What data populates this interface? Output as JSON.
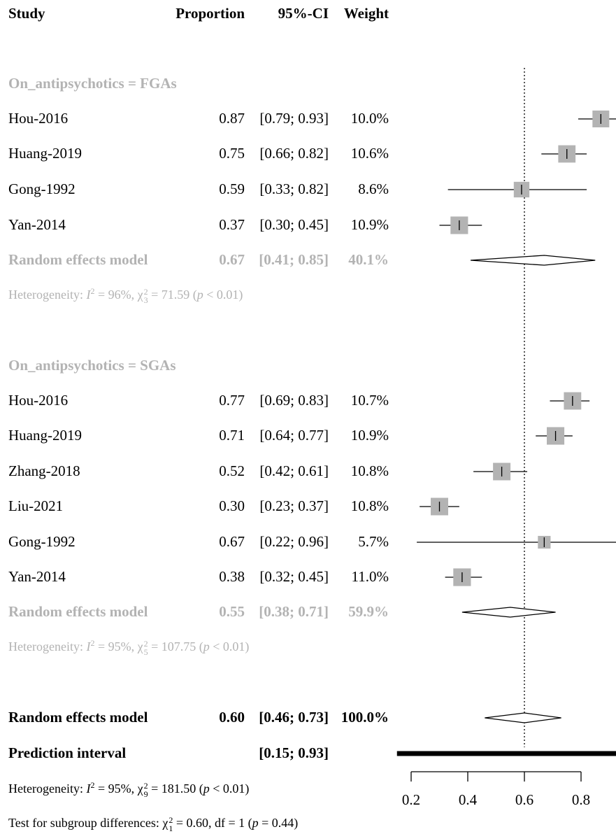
{
  "headers": {
    "study": "Study",
    "proportion": "Proportion",
    "ci": "95%-CI",
    "weight": "Weight"
  },
  "groups": [
    {
      "title": "On_antipsychotics = FGAs",
      "studies": [
        {
          "study": "Hou-2016",
          "est": "0.87",
          "ci": "[0.79; 0.93]",
          "weight": "10.0%",
          "x": 0.87,
          "lo": 0.79,
          "hi": 0.93,
          "w": 10.0
        },
        {
          "study": "Huang-2019",
          "est": "0.75",
          "ci": "[0.66; 0.82]",
          "weight": "10.6%",
          "x": 0.75,
          "lo": 0.66,
          "hi": 0.82,
          "w": 10.6
        },
        {
          "study": "Gong-1992",
          "est": "0.59",
          "ci": "[0.33; 0.82]",
          "weight": "8.6%",
          "x": 0.59,
          "lo": 0.33,
          "hi": 0.82,
          "w": 8.6
        },
        {
          "study": "Yan-2014",
          "est": "0.37",
          "ci": "[0.30; 0.45]",
          "weight": "10.9%",
          "x": 0.37,
          "lo": 0.3,
          "hi": 0.45,
          "w": 10.9
        }
      ],
      "model": {
        "label": "Random effects model",
        "est": "0.67",
        "ci": "[0.41; 0.85]",
        "weight": "40.1%",
        "x": 0.67,
        "lo": 0.41,
        "hi": 0.85
      },
      "het": {
        "prefix": "Heterogeneity: ",
        "I": "I",
        "sup1": "2",
        "eq1": " = 96%, ",
        "chi": "χ",
        "sub": "3",
        "sup2": "2",
        "eq2": " = 71.59 (",
        "p": "p",
        "tail": " < 0.01)"
      }
    },
    {
      "title": "On_antipsychotics = SGAs",
      "studies": [
        {
          "study": "Hou-2016",
          "est": "0.77",
          "ci": "[0.69; 0.83]",
          "weight": "10.7%",
          "x": 0.77,
          "lo": 0.69,
          "hi": 0.83,
          "w": 10.7
        },
        {
          "study": "Huang-2019",
          "est": "0.71",
          "ci": "[0.64; 0.77]",
          "weight": "10.9%",
          "x": 0.71,
          "lo": 0.64,
          "hi": 0.77,
          "w": 10.9
        },
        {
          "study": "Zhang-2018",
          "est": "0.52",
          "ci": "[0.42; 0.61]",
          "weight": "10.8%",
          "x": 0.52,
          "lo": 0.42,
          "hi": 0.61,
          "w": 10.8
        },
        {
          "study": "Liu-2021",
          "est": "0.30",
          "ci": "[0.23; 0.37]",
          "weight": "10.8%",
          "x": 0.3,
          "lo": 0.23,
          "hi": 0.37,
          "w": 10.8
        },
        {
          "study": "Gong-1992",
          "est": "0.67",
          "ci": "[0.22; 0.96]",
          "weight": "5.7%",
          "x": 0.67,
          "lo": 0.22,
          "hi": 0.96,
          "w": 5.7
        },
        {
          "study": "Yan-2014",
          "est": "0.38",
          "ci": "[0.32; 0.45]",
          "weight": "11.0%",
          "x": 0.38,
          "lo": 0.32,
          "hi": 0.45,
          "w": 11.0
        }
      ],
      "model": {
        "label": "Random effects model",
        "est": "0.55",
        "ci": "[0.38; 0.71]",
        "weight": "59.9%",
        "x": 0.55,
        "lo": 0.38,
        "hi": 0.71
      },
      "het": {
        "prefix": "Heterogeneity: ",
        "I": "I",
        "sup1": "2",
        "eq1": " = 95%, ",
        "chi": "χ",
        "sub": "5",
        "sup2": "2",
        "eq2": " = 107.75 (",
        "p": "p",
        "tail": " < 0.01)"
      }
    }
  ],
  "overall": {
    "model": {
      "label": "Random effects model",
      "est": "0.60",
      "ci": "[0.46; 0.73]",
      "weight": "100.0%",
      "x": 0.6,
      "lo": 0.46,
      "hi": 0.73
    },
    "prediction": {
      "label": "Prediction interval",
      "ci": "[0.15; 0.93]",
      "lo": 0.15,
      "hi": 0.93
    },
    "het": {
      "prefix": "Heterogeneity: ",
      "I": "I",
      "sup1": "2",
      "eq1": " = 95%, ",
      "chi": "χ",
      "sub": "9",
      "sup2": "2",
      "eq2": " = 181.50 (",
      "p": "p",
      "tail": " < 0.01)"
    },
    "subgroup": {
      "prefix": "Test for subgroup differences: ",
      "chi": "χ",
      "sub": "1",
      "sup2": "2",
      "eq2": " = 0.60, df = 1 (",
      "p": "p",
      "tail": " = 0.44)"
    }
  },
  "chart_data": {
    "type": "forest",
    "xlim": [
      0.2,
      0.8
    ],
    "xticks": [
      "0.2",
      "0.4",
      "0.6",
      "0.8"
    ],
    "reference_line": 0.6,
    "colors": {
      "square": "#b3b3b3",
      "line": "#000000",
      "group_text": "#b3b3b3"
    }
  }
}
